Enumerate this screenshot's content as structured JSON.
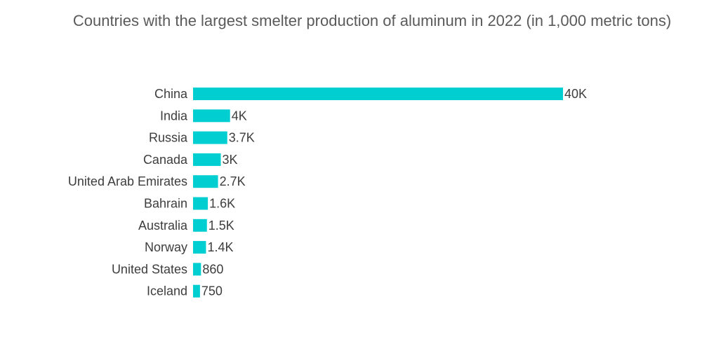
{
  "chart_data": {
    "type": "bar",
    "orientation": "horizontal",
    "title": "Countries with the largest smelter production of aluminum in 2022 (in 1,000 metric tons)",
    "categories": [
      "China",
      "India",
      "Russia",
      "Canada",
      "United Arab Emirates",
      "Bahrain",
      "Australia",
      "Norway",
      "United States",
      "Iceland"
    ],
    "values": [
      40000,
      4000,
      3700,
      3000,
      2700,
      1600,
      1500,
      1400,
      860,
      750
    ],
    "data_labels": [
      "40K",
      "4K",
      "3.7K",
      "3K",
      "2.7K",
      "1.6K",
      "1.5K",
      "1.4K",
      "860",
      "750"
    ],
    "bar_color": "#00ced1",
    "xlim": [
      0,
      40000
    ],
    "grid": false,
    "legend": "none"
  }
}
